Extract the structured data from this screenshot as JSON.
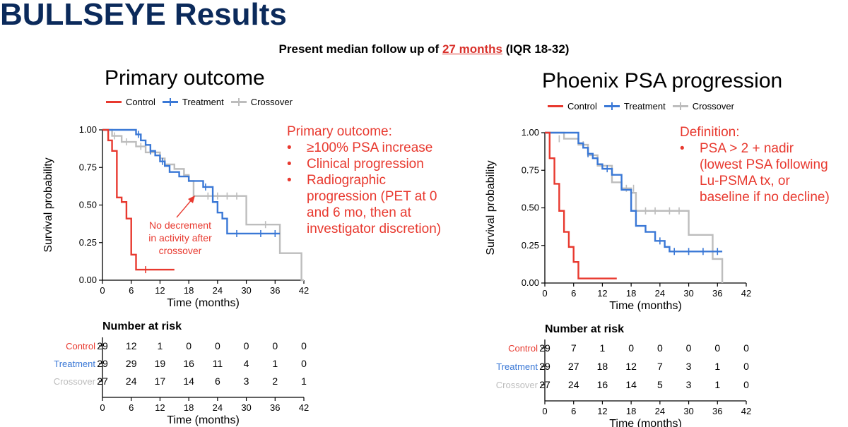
{
  "header": {
    "title": "BULLSEYE Results",
    "subtitle_pre": "Present median follow up of ",
    "subtitle_highlight": "27 months",
    "subtitle_post": " (IQR 18-32)"
  },
  "colors": {
    "control": "#e8392f",
    "treatment": "#3a78d6",
    "crossover": "#bdbdbd",
    "title": "#0b2a5b",
    "accent": "#d9302a"
  },
  "left_panel": {
    "title": "Primary outcome",
    "legend": [
      "Control",
      "Treatment",
      "Crossover"
    ],
    "annotation": {
      "heading": "Primary outcome:",
      "bullet": "•",
      "items": [
        [
          "≥100% PSA increase"
        ],
        [
          "Clinical progression"
        ],
        [
          "Radiographic",
          "progression (PET at 0",
          "and 6 mo, then at",
          "investigator discretion)"
        ]
      ]
    },
    "callout": [
      "No decrement",
      "in activity after",
      "crossover"
    ],
    "risk_table": {
      "title": "Number at risk",
      "rows": [
        {
          "label": "Control",
          "values": [
            "29",
            "12",
            "1",
            "0",
            "0",
            "0",
            "0",
            "0"
          ]
        },
        {
          "label": "Treatment",
          "values": [
            "29",
            "29",
            "19",
            "16",
            "11",
            "4",
            "1",
            "0"
          ]
        },
        {
          "label": "Crossover",
          "values": [
            "27",
            "24",
            "17",
            "14",
            "6",
            "3",
            "2",
            "1"
          ]
        }
      ],
      "xlabel": "Time (months)"
    }
  },
  "right_panel": {
    "title": "Phoenix PSA progression",
    "legend": [
      "Control",
      "Treatment",
      "Crossover"
    ],
    "annotation": {
      "heading": "Definition:",
      "bullet": "•",
      "items": [
        [
          "PSA > 2 + nadir",
          "(lowest PSA following",
          "Lu-PSMA tx, or",
          "baseline if no decline)"
        ]
      ]
    },
    "risk_table": {
      "title": "Number at risk",
      "rows": [
        {
          "label": "Control",
          "values": [
            "29",
            "7",
            "1",
            "0",
            "0",
            "0",
            "0",
            "0"
          ]
        },
        {
          "label": "Treatment",
          "values": [
            "29",
            "27",
            "18",
            "12",
            "7",
            "3",
            "1",
            "0"
          ]
        },
        {
          "label": "Crossover",
          "values": [
            "27",
            "24",
            "16",
            "14",
            "5",
            "3",
            "1",
            "0"
          ]
        }
      ],
      "xlabel": "Time (months)"
    }
  },
  "chart_data": [
    {
      "type": "line",
      "subtype": "kaplan-meier step",
      "title": "Primary outcome",
      "xlabel": "Time (months)",
      "ylabel": "Survival probability",
      "xlim": [
        0,
        42
      ],
      "ylim": [
        0,
        1
      ],
      "xticks": [
        0,
        6,
        12,
        18,
        24,
        30,
        36,
        42
      ],
      "yticks": [
        "0.00",
        "0.25",
        "0.50",
        "0.75",
        "1.00"
      ],
      "legend_position": "top",
      "series": [
        {
          "name": "Control",
          "color": "#e8392f",
          "x": [
            0,
            1.2,
            2,
            3,
            4,
            5,
            6,
            7,
            15
          ],
          "y": [
            1.0,
            0.93,
            0.86,
            0.55,
            0.52,
            0.41,
            0.17,
            0.07,
            0.07
          ],
          "censor_x": [
            9
          ],
          "censor_y": [
            0.07
          ]
        },
        {
          "name": "Treatment",
          "color": "#3a78d6",
          "x": [
            0,
            7,
            8,
            9,
            10,
            11,
            12,
            13,
            14,
            16,
            18,
            21,
            23,
            24,
            25,
            26,
            27,
            37
          ],
          "y": [
            1.0,
            0.97,
            0.93,
            0.9,
            0.86,
            0.83,
            0.79,
            0.76,
            0.72,
            0.69,
            0.66,
            0.62,
            0.52,
            0.45,
            0.41,
            0.31,
            0.31,
            0.31
          ],
          "censor_x": [
            7.5,
            10,
            12.5,
            21.5,
            28,
            33,
            36
          ],
          "censor_y": [
            0.97,
            0.86,
            0.79,
            0.62,
            0.31,
            0.31,
            0.31
          ]
        },
        {
          "name": "Crossover",
          "color": "#bdbdbd",
          "x": [
            0,
            2,
            4,
            7,
            9,
            12,
            13,
            15,
            17,
            18,
            19,
            30,
            37,
            41.5,
            42
          ],
          "y": [
            1.0,
            0.96,
            0.92,
            0.89,
            0.85,
            0.81,
            0.77,
            0.74,
            0.7,
            0.66,
            0.56,
            0.37,
            0.18,
            0.0,
            0.0
          ],
          "censor_x": [
            2.5,
            5,
            8,
            22,
            24,
            26,
            28,
            34
          ],
          "censor_y": [
            0.96,
            0.92,
            0.89,
            0.56,
            0.56,
            0.56,
            0.56,
            0.37
          ]
        }
      ]
    },
    {
      "type": "line",
      "subtype": "kaplan-meier step",
      "title": "Phoenix PSA progression",
      "xlabel": "Time (months)",
      "ylabel": "Survival probability",
      "xlim": [
        0,
        42
      ],
      "ylim": [
        0,
        1
      ],
      "xticks": [
        0,
        6,
        12,
        18,
        24,
        30,
        36,
        42
      ],
      "yticks": [
        "0.00",
        "0.25",
        "0.50",
        "0.75",
        "1.00"
      ],
      "legend_position": "top",
      "series": [
        {
          "name": "Control",
          "color": "#e8392f",
          "x": [
            0,
            1,
            2,
            3,
            4,
            5,
            6,
            7,
            15
          ],
          "y": [
            1.0,
            0.83,
            0.66,
            0.48,
            0.34,
            0.24,
            0.14,
            0.03,
            0.03
          ],
          "censor_x": [],
          "censor_y": []
        },
        {
          "name": "Treatment",
          "color": "#3a78d6",
          "x": [
            0,
            7,
            8,
            9,
            10,
            11,
            12,
            14,
            16,
            18,
            19,
            21,
            23,
            25,
            26,
            27,
            37
          ],
          "y": [
            1.0,
            0.93,
            0.9,
            0.86,
            0.83,
            0.79,
            0.76,
            0.72,
            0.62,
            0.48,
            0.38,
            0.34,
            0.28,
            0.24,
            0.21,
            0.21,
            0.21
          ],
          "censor_x": [
            9,
            13,
            24,
            27,
            30,
            33,
            36
          ],
          "censor_y": [
            0.86,
            0.76,
            0.28,
            0.21,
            0.21,
            0.21,
            0.21
          ]
        },
        {
          "name": "Crossover",
          "color": "#bdbdbd",
          "x": [
            0,
            4,
            7,
            9,
            11,
            14,
            16,
            18,
            19,
            30,
            35,
            37
          ],
          "y": [
            1.0,
            0.96,
            0.92,
            0.85,
            0.78,
            0.67,
            0.63,
            0.6,
            0.48,
            0.32,
            0.16,
            0.0
          ],
          "censor_x": [
            3,
            8,
            17,
            18.5,
            21,
            23,
            26,
            28
          ],
          "censor_y": [
            0.96,
            0.92,
            0.63,
            0.63,
            0.48,
            0.48,
            0.48,
            0.48
          ]
        }
      ]
    }
  ]
}
